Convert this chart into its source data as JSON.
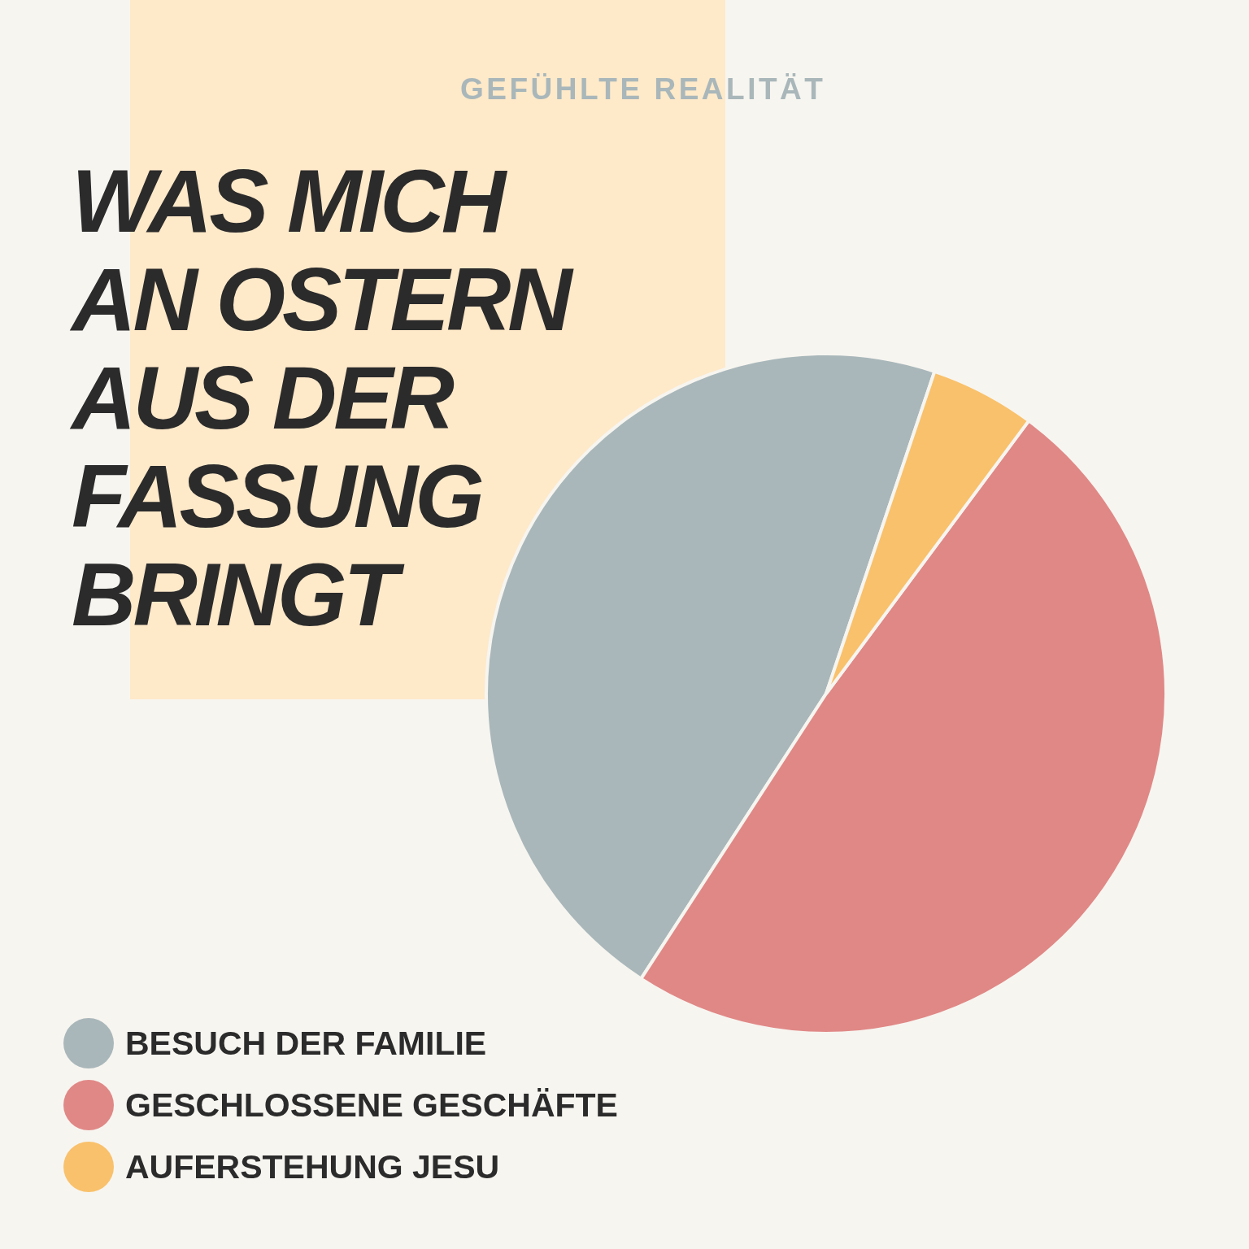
{
  "chart_data": {
    "type": "pie",
    "title": "WAS MICH AN OSTERN AUS DER FASSUNG BRINGT",
    "subtitle": "GEFÜHLTE REALITÄT",
    "categories": [
      "BESUCH DER FAMILIE",
      "GESCHLOSSENE GESCHÄFTE",
      "AUFERSTEHUNG JESU"
    ],
    "values": [
      46,
      49,
      5
    ],
    "colors": [
      "#a9b7ba",
      "#e08886",
      "#f9c16b"
    ],
    "legend": "bottom left"
  }
}
